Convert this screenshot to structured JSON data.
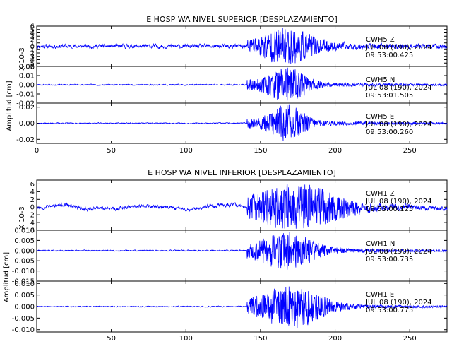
{
  "figure": {
    "background": "#ffffff",
    "axis_color": "#000000",
    "trace_color": "#0000ff"
  },
  "chart_data": [
    {
      "type": "line",
      "title": "E HOSP WA NIVEL SUPERIOR [DESPLAZAMIENTO]",
      "xlim": [
        0,
        275
      ],
      "x_ticks": [
        0,
        50,
        100,
        150,
        200,
        250
      ],
      "show_x_tick_labels": true,
      "ylabel": "Amplitud [cm]",
      "channels": [
        {
          "scale_label": "X 10-3",
          "ylim": [
            -6,
            6
          ],
          "y_ticks": [
            -6,
            -5,
            -4,
            -3,
            -2,
            -1,
            0,
            1,
            2,
            3,
            4,
            5,
            6
          ],
          "y_tick_labels": [
            "6",
            "5",
            "4",
            "3",
            "2",
            "1",
            "0",
            "1",
            "2",
            "3",
            "4",
            "5",
            "6"
          ],
          "label_lines": [
            "CWH5   Z",
            "JUL 08 (190), 2024",
            "09:53:00.425"
          ],
          "trace": {
            "noise": 0.8,
            "peak": 4.8,
            "onset": 141,
            "center": 168,
            "width": 14,
            "seed": 11
          }
        },
        {
          "ylim": [
            -0.02,
            0.02
          ],
          "y_ticks": [
            -0.02,
            -0.01,
            0.0,
            0.01,
            0.02
          ],
          "y_tick_labels": [
            "-0.02",
            "-0.01",
            "0.00",
            "0.01",
            "0.02"
          ],
          "label_lines": [
            "CWH5   N",
            "JUL 08 (190), 2024",
            "09:53:01.505"
          ],
          "trace": {
            "noise": 0.0009,
            "peak": 0.018,
            "onset": 141,
            "center": 168,
            "width": 10,
            "seed": 23
          }
        },
        {
          "ylim": [
            -0.025,
            0.025
          ],
          "y_ticks": [
            -0.02,
            0.0,
            0.02
          ],
          "y_tick_labels": [
            "-0.02",
            "0.00",
            "0.02"
          ],
          "label_lines": [
            "CWH5   E",
            "JUL 08 (190), 2024",
            "09:53:00.260"
          ],
          "trace": {
            "noise": 0.0009,
            "peak": 0.022,
            "onset": 141,
            "center": 168,
            "width": 9,
            "seed": 37
          }
        }
      ]
    },
    {
      "type": "line",
      "title": "E HOSP WA NIVEL INFERIOR [DESPLAZAMIENTO]",
      "xlim": [
        0,
        275
      ],
      "x_ticks": [
        50,
        100,
        150,
        200,
        250
      ],
      "show_x_tick_labels": true,
      "ylabel": "Amplitud [cm]",
      "channels": [
        {
          "scale_label": "X 10-3",
          "ylim": [
            -6,
            7
          ],
          "y_ticks": [
            -6,
            -4,
            -2,
            0,
            2,
            4,
            6
          ],
          "y_tick_labels": [
            "6",
            "4",
            "2",
            "0",
            "2",
            "4",
            "6"
          ],
          "label_lines": [
            "CWH1   Z",
            "JUL 08 (190), 2024",
            "09:53:00.125"
          ],
          "trace": {
            "noise": 0.6,
            "peak": 5.5,
            "onset": 141,
            "center": 175,
            "width": 22,
            "seed": 53,
            "wander": 1.2
          }
        },
        {
          "ylim": [
            -0.015,
            0.01
          ],
          "y_ticks": [
            -0.015,
            -0.01,
            -0.005,
            0.0,
            0.005,
            0.01
          ],
          "y_tick_labels": [
            "-0.015",
            "-0.010",
            "-0.005",
            "0.000",
            "0.005",
            "0.010"
          ],
          "label_lines": [
            "CWH1   N",
            "JUL 08 (190), 2024",
            "09:53:00.735"
          ],
          "trace": {
            "noise": 0.0004,
            "peak": 0.009,
            "onset": 141,
            "center": 168,
            "width": 14,
            "seed": 71
          }
        },
        {
          "ylim": [
            -0.011,
            0.011
          ],
          "y_ticks": [
            -0.01,
            -0.005,
            0.0,
            0.005,
            0.01
          ],
          "y_tick_labels": [
            "-0.010",
            "-0.005",
            "0.000",
            "0.005",
            "0.010"
          ],
          "label_lines": [
            "CWH1   E",
            "JUL 08 (190), 2024",
            "09:53:00.775"
          ],
          "trace": {
            "noise": 0.0003,
            "peak": 0.009,
            "onset": 141,
            "center": 172,
            "width": 16,
            "seed": 89
          }
        }
      ]
    }
  ]
}
